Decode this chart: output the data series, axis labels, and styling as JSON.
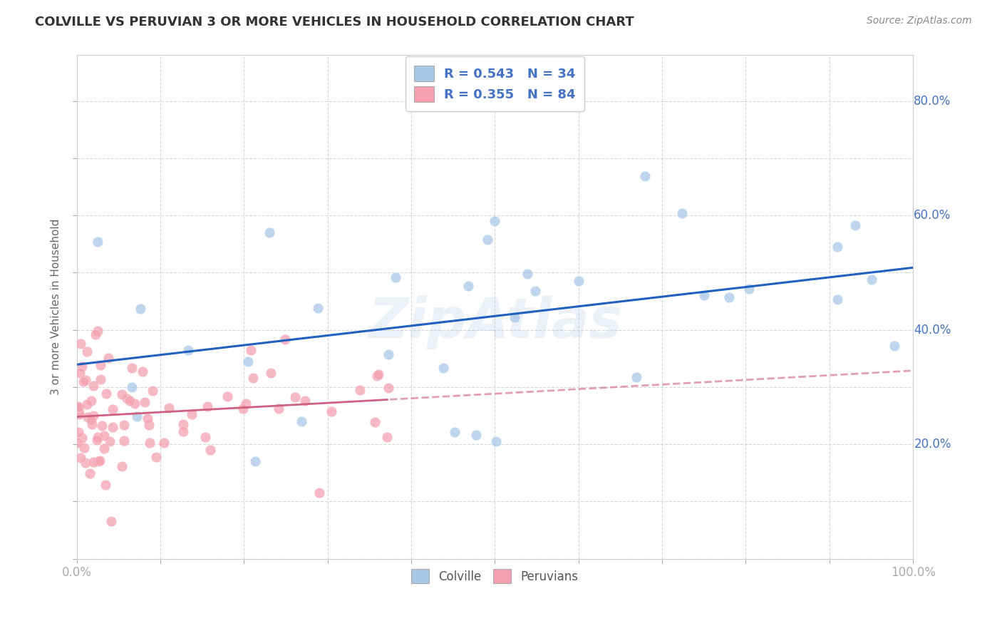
{
  "title": "COLVILLE VS PERUVIAN 3 OR MORE VEHICLES IN HOUSEHOLD CORRELATION CHART",
  "source": "Source: ZipAtlas.com",
  "ylabel": "3 or more Vehicles in Household",
  "watermark": "ZipAtlas",
  "colville_R": 0.543,
  "colville_N": 34,
  "peruvian_R": 0.355,
  "peruvian_N": 84,
  "colville_color": "#a8c8e8",
  "peruvian_color": "#f4a0b0",
  "colville_line_color": "#2060c0",
  "peruvian_line_color": "#d06080",
  "grid_color": "#cccccc",
  "background_color": "#ffffff",
  "title_color": "#333333",
  "source_color": "#888888",
  "tick_color": "#4472c4",
  "ylabel_color": "#666666",
  "watermark_color": "#b8d0e8",
  "legend_text_color": "#4472c4"
}
